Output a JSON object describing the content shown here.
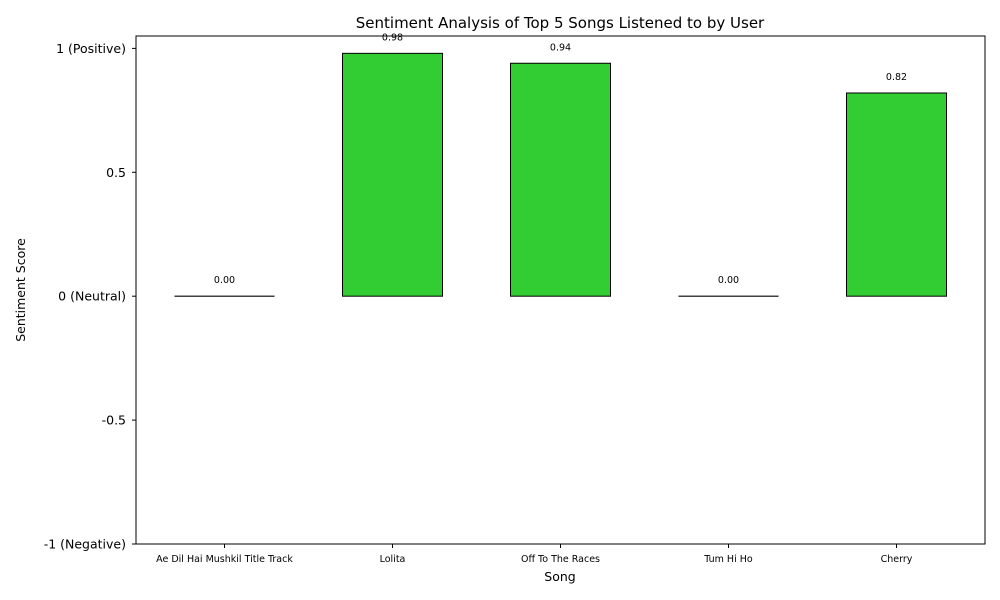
{
  "chart_data": {
    "type": "bar",
    "title": "Sentiment Analysis of Top 5 Songs Listened to by User",
    "xlabel": "Song",
    "ylabel": "Sentiment Score",
    "categories": [
      "Ae Dil Hai Mushkil Title Track",
      "Lolita",
      "Off To The Races",
      "Tum Hi Ho",
      "Cherry"
    ],
    "values": [
      0.0,
      0.98,
      0.94,
      0.0,
      0.82
    ],
    "data_labels": [
      "0.00",
      "0.98",
      "0.94",
      "0.00",
      "0.82"
    ],
    "ylim": [
      -1,
      1.05
    ],
    "yticks": [
      {
        "value": 1,
        "label": "1 (Positive)"
      },
      {
        "value": 0.5,
        "label": "0.5"
      },
      {
        "value": 0,
        "label": "0 (Neutral)"
      },
      {
        "value": -0.5,
        "label": "-0.5"
      },
      {
        "value": -1,
        "label": "-1 (Negative)"
      }
    ],
    "bar_color": "#32cd32",
    "bar_edge_color": "#000000",
    "grid": false,
    "legend": "none"
  }
}
